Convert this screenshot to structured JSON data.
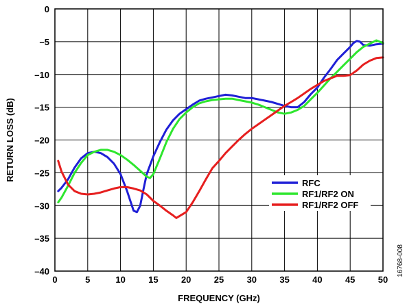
{
  "chart_data": {
    "type": "line",
    "title": "",
    "xlabel": "FREQUENCY (GHz)",
    "ylabel": "RETURN LOSS (dB)",
    "xlim": [
      0,
      50
    ],
    "ylim": [
      -40,
      0
    ],
    "xticks": [
      0,
      5,
      10,
      15,
      20,
      25,
      30,
      35,
      40,
      45,
      50
    ],
    "yticks": [
      0,
      -5,
      -10,
      -15,
      -20,
      -25,
      -30,
      -35,
      -40
    ],
    "xtick_labels": [
      "0",
      "5",
      "10",
      "15",
      "20",
      "25",
      "30",
      "35",
      "40",
      "45",
      "50"
    ],
    "ytick_labels": [
      "0",
      "–5",
      "–10",
      "–15",
      "–20",
      "–25",
      "–30",
      "–35",
      "–40"
    ],
    "grid": true,
    "legend_position": "lower-right",
    "figure_id": "16768-008",
    "series": [
      {
        "name": "RFC",
        "color": "#1f1fd6",
        "x": [
          0.5,
          1,
          2,
          3,
          4,
          5,
          6,
          7,
          8,
          9,
          10,
          11,
          11.5,
          12,
          12.5,
          13,
          13.5,
          14,
          15,
          16,
          17,
          18,
          19,
          20,
          21,
          22,
          23,
          24,
          25,
          26,
          27,
          28,
          29,
          30,
          31,
          32,
          33,
          34,
          35,
          36,
          37,
          38,
          39,
          40,
          41,
          42,
          43,
          44,
          45,
          45.5,
          46,
          46.5,
          47,
          48,
          49,
          50
        ],
        "y": [
          -27.8,
          -27.3,
          -26,
          -24.2,
          -22.8,
          -22,
          -21.8,
          -22,
          -22.6,
          -23.6,
          -25.2,
          -27.8,
          -29.3,
          -30.8,
          -31,
          -30,
          -27.5,
          -25.2,
          -22.5,
          -20.3,
          -18.4,
          -17,
          -16,
          -15.3,
          -14.6,
          -14,
          -13.7,
          -13.5,
          -13.3,
          -13.1,
          -13.2,
          -13.4,
          -13.6,
          -13.6,
          -13.8,
          -14,
          -14.2,
          -14.5,
          -14.8,
          -15,
          -15,
          -14.2,
          -13,
          -12,
          -10.5,
          -9.2,
          -7.8,
          -6.8,
          -5.8,
          -5.2,
          -4.9,
          -5,
          -5.5,
          -5.6,
          -5.4,
          -5.3
        ]
      },
      {
        "name": "RF1/RF2 ON",
        "color": "#2ee62e",
        "x": [
          0.5,
          1,
          2,
          3,
          4,
          5,
          6,
          7,
          8,
          9,
          10,
          11,
          12,
          13,
          14,
          14.5,
          15,
          16,
          17,
          18,
          19,
          20,
          21,
          22,
          23,
          24,
          25,
          26,
          27,
          28,
          29,
          30,
          31,
          32,
          33,
          34,
          35,
          36,
          37,
          38,
          39,
          40,
          41,
          42,
          43,
          44,
          45,
          46,
          47,
          48,
          49,
          50
        ],
        "y": [
          -29.5,
          -28.8,
          -27,
          -25,
          -23.5,
          -22.3,
          -21.8,
          -21.5,
          -21.5,
          -21.8,
          -22.3,
          -23,
          -23.8,
          -24.7,
          -25.6,
          -25.8,
          -25.2,
          -22.8,
          -20.3,
          -18.3,
          -16.8,
          -15.8,
          -15,
          -14.4,
          -14.1,
          -13.9,
          -13.8,
          -13.7,
          -13.7,
          -13.9,
          -14.1,
          -14.3,
          -14.6,
          -15,
          -15.4,
          -15.8,
          -16,
          -15.8,
          -15.4,
          -14.8,
          -13.8,
          -12.8,
          -11.7,
          -10.6,
          -9.6,
          -8.6,
          -7.6,
          -6.6,
          -5.8,
          -5.3,
          -4.8,
          -5.2
        ]
      },
      {
        "name": "RF1/RF2 OFF",
        "color": "#e61f1f",
        "x": [
          0.5,
          1,
          2,
          3,
          4,
          5,
          6,
          7,
          8,
          9,
          10,
          11,
          12,
          13,
          14,
          15,
          16,
          17,
          18,
          18.5,
          19,
          19.5,
          20,
          21,
          22,
          23,
          24,
          25,
          26,
          27,
          28,
          29,
          30,
          31,
          32,
          33,
          34,
          35,
          36,
          37,
          38,
          39,
          40,
          41,
          42,
          43,
          44,
          45,
          46,
          47,
          48,
          49,
          50
        ],
        "y": [
          -23.2,
          -24.8,
          -26.8,
          -27.8,
          -28.2,
          -28.3,
          -28.2,
          -28,
          -27.7,
          -27.4,
          -27.2,
          -27.2,
          -27.4,
          -27.7,
          -28.3,
          -29.3,
          -30,
          -30.8,
          -31.5,
          -31.9,
          -31.6,
          -31.3,
          -31,
          -29.5,
          -27.8,
          -26,
          -24.3,
          -23.2,
          -22,
          -21,
          -20,
          -19.1,
          -18.3,
          -17.6,
          -16.9,
          -16.2,
          -15.5,
          -14.8,
          -14.2,
          -13.6,
          -12.9,
          -12.2,
          -11.6,
          -11,
          -10.6,
          -10.2,
          -10.2,
          -10.1,
          -9.4,
          -8.5,
          -7.9,
          -7.5,
          -7.4
        ]
      }
    ]
  }
}
